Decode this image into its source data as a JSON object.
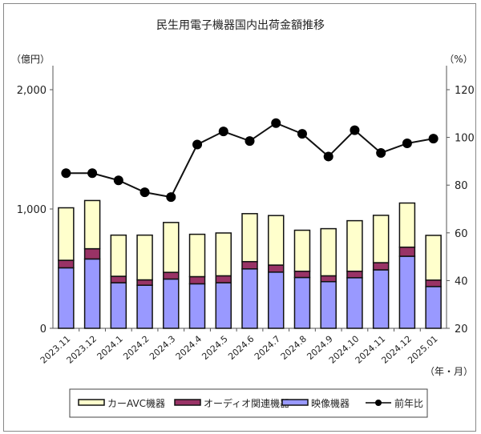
{
  "chart_data": {
    "type": "bar",
    "stacked": true,
    "title": "民生用電子機器国内出荷金額推移",
    "ylabel_left": "（億円）",
    "ylabel_right": "（%）",
    "xlabel": "（年・月）",
    "ylim_left": [
      0,
      2000
    ],
    "yticks_left": [
      "0",
      "1,000",
      "2,000"
    ],
    "ylim_right": [
      20,
      120
    ],
    "yticks_right": [
      "20",
      "40",
      "60",
      "80",
      "100",
      "120"
    ],
    "grid": false,
    "legend_position": "bottom",
    "categories": [
      "2023.11",
      "2023.12",
      "2024.1",
      "2024.2",
      "2024.3",
      "2024.4",
      "2024.5",
      "2024.6",
      "2024.7",
      "2024.8",
      "2024.9",
      "2024.10",
      "2024.11",
      "2024.12",
      "2025.01"
    ],
    "series": [
      {
        "name": "映像機器",
        "axis": "left",
        "color": "#9999ff",
        "values": [
          507,
          581,
          382,
          361,
          413,
          373,
          382,
          498,
          471,
          426,
          391,
          424,
          490,
          604,
          350
        ]
      },
      {
        "name": "オーディオ関連機器",
        "axis": "left",
        "color": "#993366",
        "values": [
          63,
          86,
          54,
          45,
          56,
          60,
          58,
          61,
          59,
          52,
          49,
          54,
          60,
          76,
          54
        ]
      },
      {
        "name": "カーAVC機器",
        "axis": "left",
        "color": "#ffffcc",
        "values": [
          440,
          404,
          345,
          375,
          418,
          355,
          359,
          402,
          415,
          344,
          395,
          424,
          397,
          370,
          375
        ]
      },
      {
        "name": "前年比",
        "axis": "right",
        "type": "line",
        "color": "#000000",
        "values": [
          85,
          85,
          82,
          77,
          75,
          97,
          102.5,
          98.5,
          106,
          101.5,
          92,
          103,
          93.5,
          97.5,
          99.5
        ]
      }
    ],
    "legend_order": [
      "カーAVC機器",
      "オーディオ関連機器",
      "映像機器",
      "前年比"
    ]
  }
}
